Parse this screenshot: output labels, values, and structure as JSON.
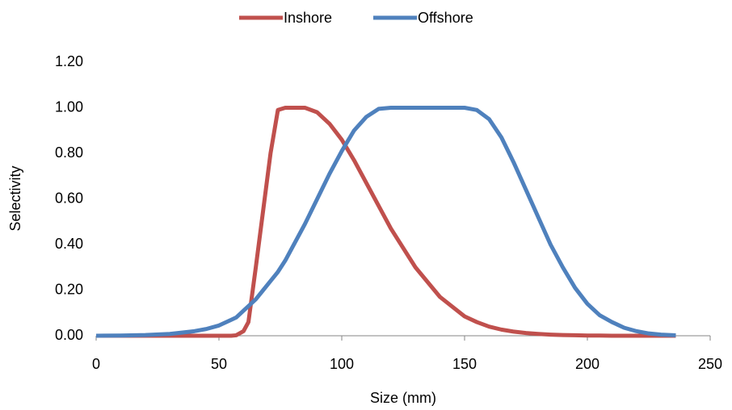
{
  "chart_data": {
    "type": "line",
    "x_label": "Size (mm)",
    "y_label": "Selectivity",
    "x": [
      0,
      10,
      20,
      30,
      40,
      45,
      50,
      55,
      57,
      60,
      62,
      65,
      68,
      71,
      74,
      77,
      80,
      85,
      90,
      95,
      100,
      105,
      110,
      115,
      120,
      130,
      140,
      150,
      155,
      160,
      165,
      170,
      175,
      180,
      185,
      190,
      195,
      200,
      205,
      210,
      215,
      220,
      225,
      230,
      236
    ],
    "series": [
      {
        "name": "Inshore",
        "color": "#c0504d",
        "values": [
          0,
          0,
          0,
          0,
          0,
          0,
          0,
          0,
          0.002,
          0.02,
          0.06,
          0.3,
          0.55,
          0.8,
          0.99,
          1,
          1,
          1,
          0.98,
          0.93,
          0.86,
          0.77,
          0.67,
          0.57,
          0.47,
          0.3,
          0.17,
          0.085,
          0.06,
          0.04,
          0.027,
          0.018,
          0.012,
          0.008,
          0.005,
          0.003,
          0.002,
          0.001,
          0.001,
          0,
          0,
          0,
          0,
          0,
          0
        ]
      },
      {
        "name": "Offshore",
        "color": "#4f81bd",
        "values": [
          0,
          0.001,
          0.003,
          0.008,
          0.02,
          0.03,
          0.045,
          0.07,
          0.08,
          0.11,
          0.13,
          0.16,
          0.2,
          0.24,
          0.28,
          0.33,
          0.39,
          0.49,
          0.6,
          0.71,
          0.81,
          0.9,
          0.96,
          0.995,
          1,
          1,
          1,
          1,
          0.99,
          0.95,
          0.87,
          0.76,
          0.64,
          0.52,
          0.4,
          0.3,
          0.21,
          0.14,
          0.09,
          0.06,
          0.035,
          0.02,
          0.01,
          0.005,
          0.002
        ]
      }
    ],
    "xlim": [
      0,
      250
    ],
    "xticks": [
      0,
      50,
      100,
      150,
      200,
      250
    ],
    "ylim": [
      0,
      1.2
    ],
    "yticks": [
      {
        "value": 0,
        "label": "0.00"
      },
      {
        "value": 0.2,
        "label": "0.20"
      },
      {
        "value": 0.4,
        "label": "0.40"
      },
      {
        "value": 0.6,
        "label": "0.60"
      },
      {
        "value": 0.8,
        "label": "0.80"
      },
      {
        "value": 1,
        "label": "1.00"
      },
      {
        "value": 1.2,
        "label": "1.20"
      }
    ],
    "grid": false,
    "legend": "top"
  }
}
